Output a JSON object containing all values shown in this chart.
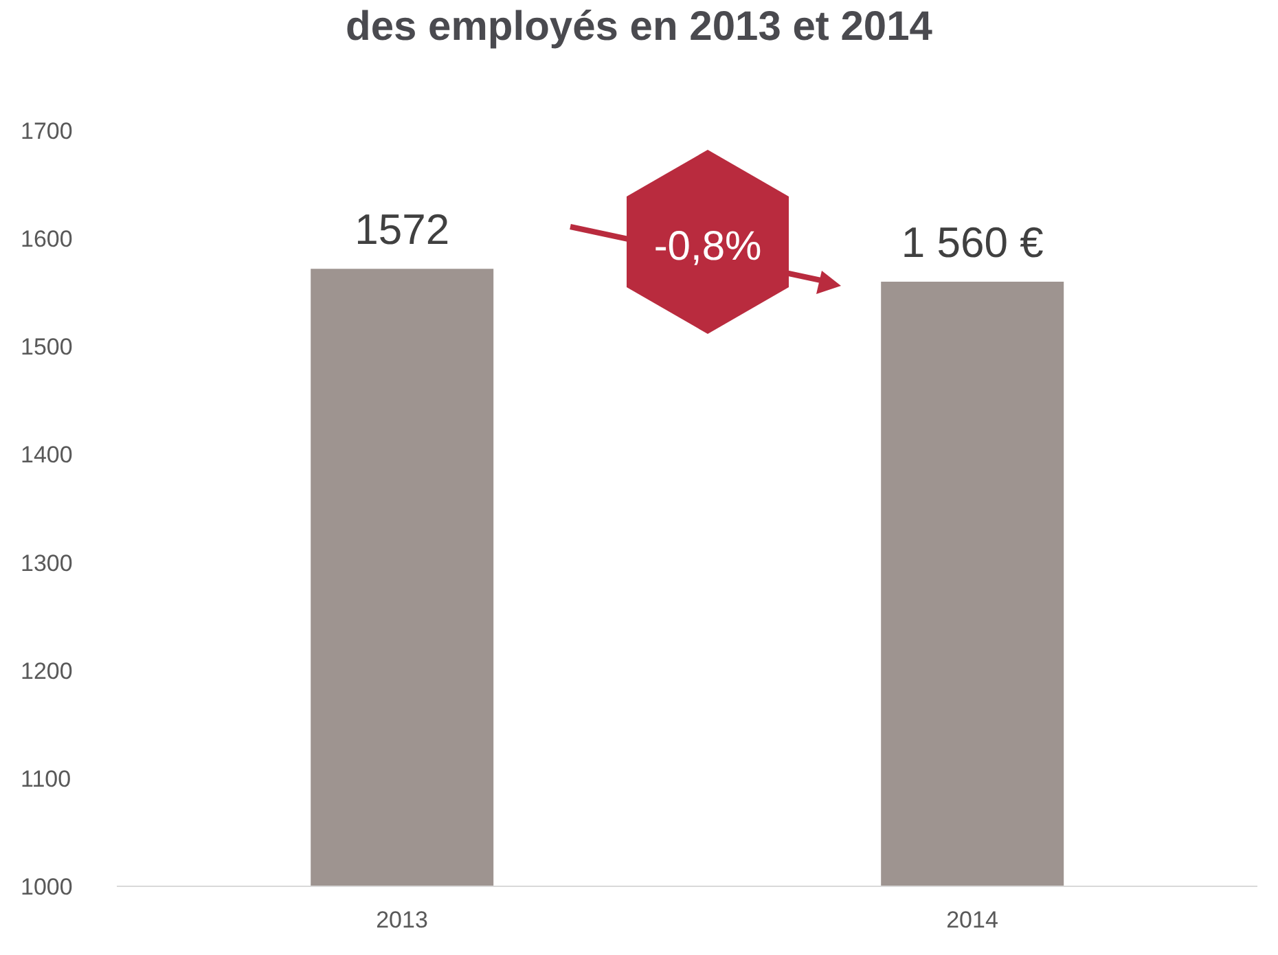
{
  "chart_data": {
    "type": "bar",
    "title": "des employés en 2013 et 2014",
    "categories": [
      "2013",
      "2014"
    ],
    "values": [
      1572,
      1560
    ],
    "value_labels": [
      "1572",
      "1 560 €"
    ],
    "color": "#9e9490",
    "ylim": [
      1000,
      1700
    ],
    "yticks": [
      1000,
      1100,
      1200,
      1300,
      1400,
      1500,
      1600,
      1700
    ],
    "grid": false,
    "legend": false,
    "annotations": [
      "-0,8%"
    ]
  }
}
